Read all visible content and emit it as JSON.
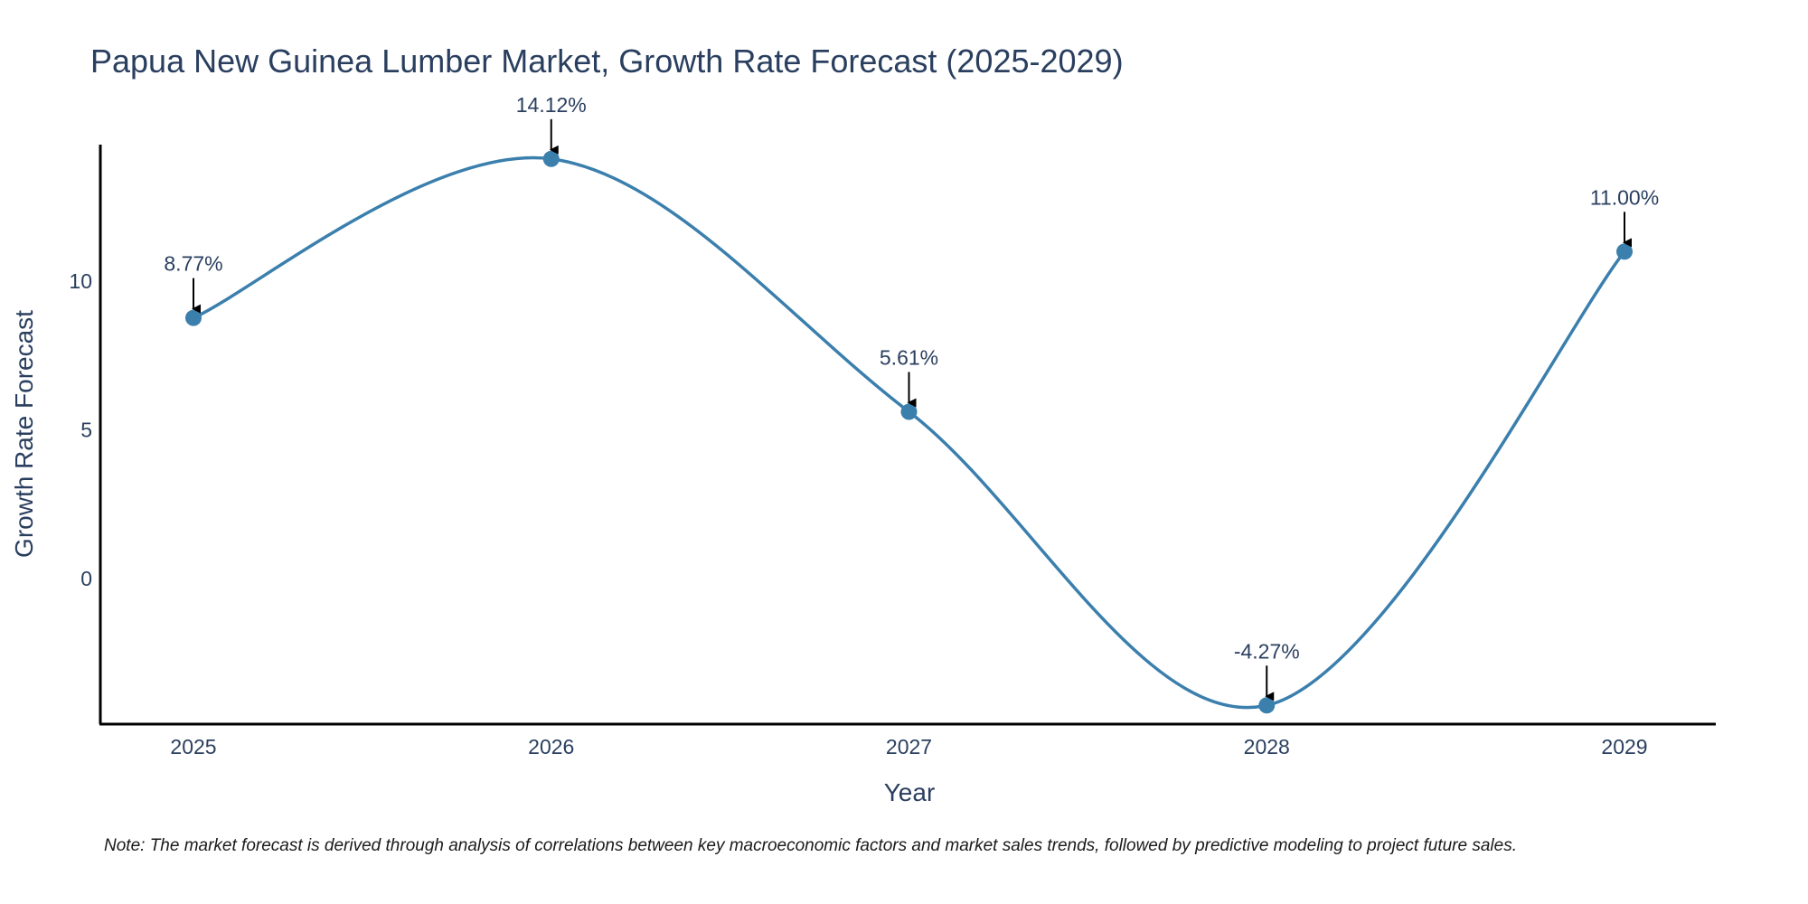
{
  "chart_data": {
    "type": "line",
    "title": "Papua New Guinea Lumber Market, Growth Rate Forecast (2025-2029)",
    "xlabel": "Year",
    "ylabel": "Growth Rate Forecast",
    "categories": [
      "2025",
      "2026",
      "2027",
      "2028",
      "2029"
    ],
    "series": [
      {
        "name": "Growth Rate Forecast",
        "values": [
          8.77,
          14.12,
          5.61,
          -4.27,
          11.0
        ],
        "labels": [
          "8.77%",
          "14.12%",
          "5.61%",
          "-4.27%",
          "11.00%"
        ]
      }
    ],
    "yticks": [
      0,
      5,
      10
    ],
    "ytick_labels": [
      "0",
      "5",
      "10"
    ],
    "ylim": [
      -4.9,
      14.6
    ],
    "grid": false,
    "line_color": "#3b7fad",
    "marker_color": "#3b7fad",
    "arrow_color": "#000000",
    "axis_color": "#000000",
    "note": "Note: The market forecast is derived through analysis of correlations between key macroeconomic factors and market sales trends, followed by predictive modeling to project future sales."
  }
}
